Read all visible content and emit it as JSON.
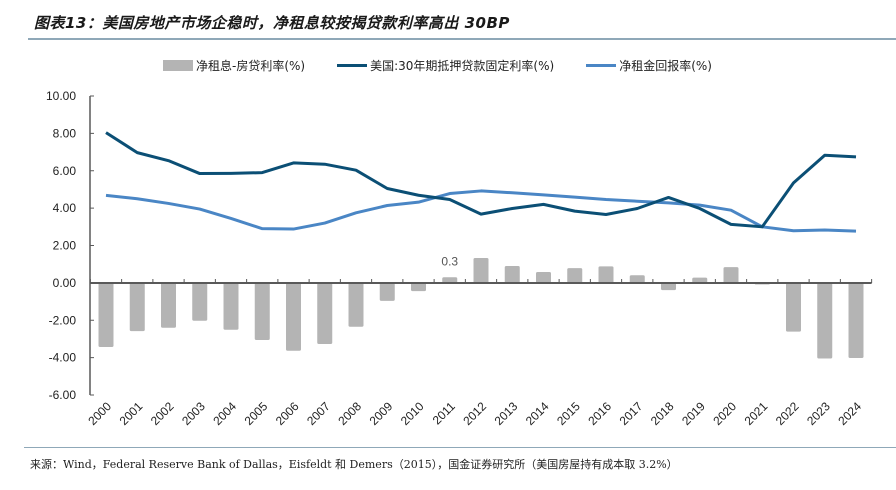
{
  "title": "图表13：美国房地产市场企稳时，净租息较按揭贷款利率高出 30BP",
  "source": "来源：Wind，Federal Reserve Bank of Dallas，Eisfeldt 和 Demers（2015），国金证券研究所（美国房屋持有成本取 3.2%）",
  "colors": {
    "bar": "#b4b4b4",
    "mortgage_line": "#0b4f75",
    "rental_line": "#4a86c5",
    "axis": "#595959",
    "rule": "#8fa8b8"
  },
  "chart_data": {
    "type": "bar+line",
    "title": "图表13：美国房地产市场企稳时，净租息较按揭贷款利率高出 30BP",
    "xlabel": "",
    "ylabel": "",
    "ylim": [
      -6,
      10
    ],
    "yticks": [
      "10.00",
      "8.00",
      "6.00",
      "4.00",
      "2.00",
      "0.00",
      "-2.00",
      "-4.00",
      "-6.00"
    ],
    "ytick_values": [
      10,
      8,
      6,
      4,
      2,
      0,
      -2,
      -4,
      -6
    ],
    "grid": false,
    "legend_position": "top",
    "categories": [
      "2000",
      "2001",
      "2002",
      "2003",
      "2004",
      "2005",
      "2006",
      "2007",
      "2008",
      "2009",
      "2010",
      "2011",
      "2012",
      "2013",
      "2014",
      "2015",
      "2016",
      "2017",
      "2018",
      "2019",
      "2020",
      "2021",
      "2022",
      "2023",
      "2024"
    ],
    "series": [
      {
        "name": "净租息-房贷利率(%)",
        "type": "bar",
        "values": [
          -3.43,
          -2.58,
          -2.4,
          -2.03,
          -2.51,
          -3.06,
          -3.63,
          -3.27,
          -2.35,
          -0.96,
          -0.44,
          0.3,
          1.33,
          0.9,
          0.58,
          0.79,
          0.88,
          0.41,
          -0.39,
          0.28,
          0.84,
          -0.05,
          -2.61,
          -4.05,
          -4.02
        ]
      },
      {
        "name": "美国:30年期抵押贷款固定利率(%)",
        "type": "line",
        "values": [
          8.04,
          6.97,
          6.54,
          5.85,
          5.86,
          5.9,
          6.42,
          6.35,
          6.03,
          5.05,
          4.69,
          4.46,
          3.68,
          3.98,
          4.2,
          3.84,
          3.66,
          3.98,
          4.57,
          3.98,
          3.13,
          3.0,
          5.35,
          6.83,
          6.74
        ]
      },
      {
        "name": "净租金回报率(%)",
        "type": "line",
        "values": [
          4.68,
          4.5,
          4.25,
          3.95,
          3.45,
          2.9,
          2.88,
          3.2,
          3.75,
          4.14,
          4.32,
          4.78,
          4.92,
          4.82,
          4.71,
          4.59,
          4.46,
          4.37,
          4.28,
          4.16,
          3.89,
          3.0,
          2.79,
          2.83,
          2.77
        ]
      }
    ],
    "annotations": [
      {
        "category": "2011",
        "series": "净租息-房贷利率(%)",
        "text": "0.3"
      }
    ]
  }
}
